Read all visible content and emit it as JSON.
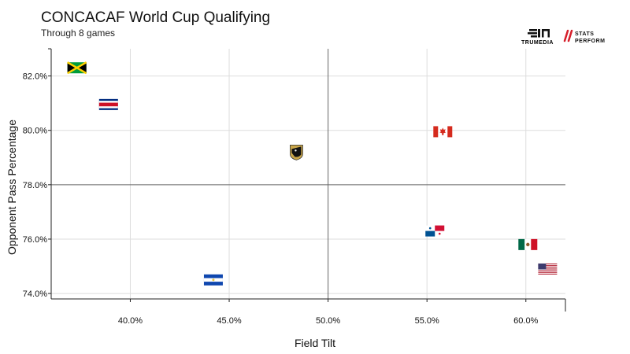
{
  "header": {
    "title": "CONCACAF World Cup Qualifying",
    "subtitle": "Through 8 games"
  },
  "logos": {
    "trumedia_text": "TRUMEDIA",
    "stats_perform_line1": "STATS",
    "stats_perform_line2": "PERFORM"
  },
  "chart_data": {
    "type": "scatter",
    "xlabel": "Field Tilt",
    "ylabel": "Opponent Pass Percentage",
    "x_ticks": [
      40,
      45,
      50,
      55,
      60
    ],
    "x_tick_labels": [
      "40.0%",
      "45.0%",
      "50.0%",
      "55.0%",
      "60.0%"
    ],
    "y_ticks": [
      74,
      76,
      78,
      80,
      82
    ],
    "y_tick_labels": [
      "74.0%",
      "76.0%",
      "78.0%",
      "80.0%",
      "82.0%"
    ],
    "xlim": [
      36.0,
      62.0
    ],
    "ylim": [
      73.8,
      83.0
    ],
    "reference_lines": {
      "x": 50.0,
      "y": 78.0
    },
    "grid": true,
    "points": [
      {
        "team": "Jamaica",
        "icon": "jamaica-flag-icon",
        "x": 37.3,
        "y": 82.3
      },
      {
        "team": "Costa Rica",
        "icon": "costa-rica-flag-icon",
        "x": 38.9,
        "y": 80.95
      },
      {
        "team": "Honduras",
        "icon": "honduras-crest-icon",
        "x": 48.4,
        "y": 79.2
      },
      {
        "team": "Canada",
        "icon": "canada-flag-icon",
        "x": 55.8,
        "y": 79.95
      },
      {
        "team": "Panama",
        "icon": "panama-flag-icon",
        "x": 55.4,
        "y": 76.3
      },
      {
        "team": "Mexico",
        "icon": "mexico-flag-icon",
        "x": 60.1,
        "y": 75.8
      },
      {
        "team": "USA",
        "icon": "usa-flag-icon",
        "x": 61.1,
        "y": 74.9
      },
      {
        "team": "El Salvador",
        "icon": "el-salvador-flag-icon",
        "x": 44.2,
        "y": 74.5
      }
    ]
  }
}
